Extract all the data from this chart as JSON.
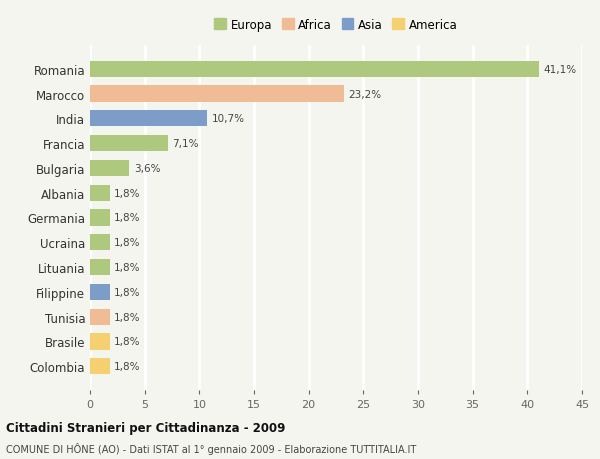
{
  "categories": [
    "Romania",
    "Marocco",
    "India",
    "Francia",
    "Bulgaria",
    "Albania",
    "Germania",
    "Ucraina",
    "Lituania",
    "Filippine",
    "Tunisia",
    "Brasile",
    "Colombia"
  ],
  "values": [
    41.1,
    23.2,
    10.7,
    7.1,
    3.6,
    1.8,
    1.8,
    1.8,
    1.8,
    1.8,
    1.8,
    1.8,
    1.8
  ],
  "labels": [
    "41,1%",
    "23,2%",
    "10,7%",
    "7,1%",
    "3,6%",
    "1,8%",
    "1,8%",
    "1,8%",
    "1,8%",
    "1,8%",
    "1,8%",
    "1,8%",
    "1,8%"
  ],
  "colors": [
    "#aec97e",
    "#f0bc96",
    "#7b9dc8",
    "#aec97e",
    "#aec97e",
    "#aec97e",
    "#aec97e",
    "#aec97e",
    "#aec97e",
    "#7b9dc8",
    "#f0bc96",
    "#f5d070",
    "#f5d070"
  ],
  "legend_labels": [
    "Europa",
    "Africa",
    "Asia",
    "America"
  ],
  "legend_colors": [
    "#aec97e",
    "#f0bc96",
    "#7b9dc8",
    "#f5d070"
  ],
  "xlim": [
    0,
    45
  ],
  "xticks": [
    0,
    5,
    10,
    15,
    20,
    25,
    30,
    35,
    40,
    45
  ],
  "title_main": "Cittadini Stranieri per Cittadinanza - 2009",
  "title_sub": "COMUNE DI HÔNE (AO) - Dati ISTAT al 1° gennaio 2009 - Elaborazione TUTTITALIA.IT",
  "background_color": "#f5f5f0",
  "grid_color": "#ffffff",
  "bar_height": 0.65
}
